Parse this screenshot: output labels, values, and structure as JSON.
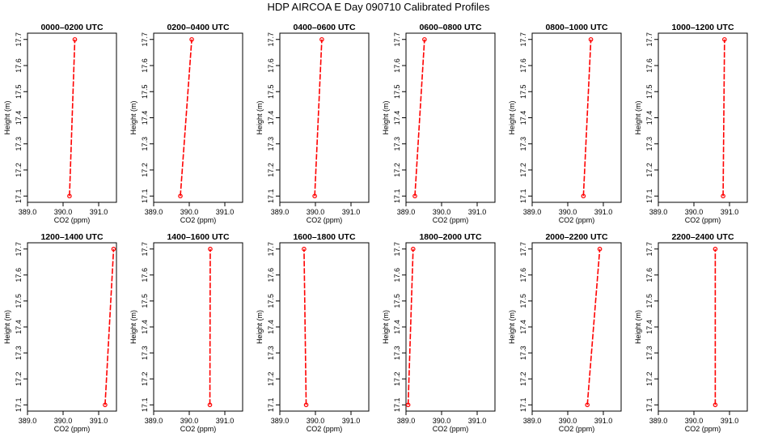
{
  "page": {
    "title": "HDP AIRCOA E  Day 090710  Calibrated Profiles"
  },
  "colors": {
    "series": "#ff0000",
    "axis": "#000000"
  },
  "chart_data": [
    {
      "type": "line",
      "title": "0000–0200 UTC",
      "xlabel": "CO2 (ppm)",
      "ylabel": "Height (m)",
      "xlim": [
        389.0,
        391.5
      ],
      "ylim": [
        17.1,
        17.7
      ],
      "xticks": [
        "389.0",
        "390.0",
        "391.0"
      ],
      "yticks": [
        "17.1",
        "17.2",
        "17.3",
        "17.4",
        "17.5",
        "17.6",
        "17.7"
      ],
      "x": [
        390.18,
        390.33
      ],
      "y": [
        17.1,
        17.7
      ]
    },
    {
      "type": "line",
      "title": "0200–0400 UTC",
      "xlabel": "CO2 (ppm)",
      "ylabel": "Height (m)",
      "xlim": [
        389.0,
        391.5
      ],
      "ylim": [
        17.1,
        17.7
      ],
      "xticks": [
        "389.0",
        "390.0",
        "391.0"
      ],
      "yticks": [
        "17.1",
        "17.2",
        "17.3",
        "17.4",
        "17.5",
        "17.6",
        "17.7"
      ],
      "x": [
        389.75,
        390.07
      ],
      "y": [
        17.1,
        17.7
      ]
    },
    {
      "type": "line",
      "title": "0400–0600 UTC",
      "xlabel": "CO2 (ppm)",
      "ylabel": "Height (m)",
      "xlim": [
        389.0,
        391.5
      ],
      "ylim": [
        17.1,
        17.7
      ],
      "xticks": [
        "389.0",
        "390.0",
        "391.0"
      ],
      "yticks": [
        "17.1",
        "17.2",
        "17.3",
        "17.4",
        "17.5",
        "17.6",
        "17.7"
      ],
      "x": [
        389.98,
        390.18
      ],
      "y": [
        17.1,
        17.7
      ]
    },
    {
      "type": "line",
      "title": "0600–0800 UTC",
      "xlabel": "CO2 (ppm)",
      "ylabel": "Height (m)",
      "xlim": [
        389.0,
        391.5
      ],
      "ylim": [
        17.1,
        17.7
      ],
      "xticks": [
        "389.0",
        "390.0",
        "391.0"
      ],
      "yticks": [
        "17.1",
        "17.2",
        "17.3",
        "17.4",
        "17.5",
        "17.6",
        "17.7"
      ],
      "x": [
        389.25,
        389.52
      ],
      "y": [
        17.1,
        17.7
      ]
    },
    {
      "type": "line",
      "title": "0800–1000 UTC",
      "xlabel": "CO2 (ppm)",
      "ylabel": "Height (m)",
      "xlim": [
        389.0,
        391.5
      ],
      "ylim": [
        17.1,
        17.7
      ],
      "xticks": [
        "389.0",
        "390.0",
        "391.0"
      ],
      "yticks": [
        "17.1",
        "17.2",
        "17.3",
        "17.4",
        "17.5",
        "17.6",
        "17.7"
      ],
      "x": [
        390.44,
        390.65
      ],
      "y": [
        17.1,
        17.7
      ]
    },
    {
      "type": "line",
      "title": "1000–1200 UTC",
      "xlabel": "CO2 (ppm)",
      "ylabel": "Height (m)",
      "xlim": [
        389.0,
        391.5
      ],
      "ylim": [
        17.1,
        17.7
      ],
      "xticks": [
        "389.0",
        "390.0",
        "391.0"
      ],
      "yticks": [
        "17.1",
        "17.2",
        "17.3",
        "17.4",
        "17.5",
        "17.6",
        "17.7"
      ],
      "x": [
        390.82,
        390.86
      ],
      "y": [
        17.1,
        17.7
      ]
    },
    {
      "type": "line",
      "title": "1200–1400 UTC",
      "xlabel": "CO2 (ppm)",
      "ylabel": "Height (m)",
      "xlim": [
        389.0,
        391.5
      ],
      "ylim": [
        17.1,
        17.7
      ],
      "xticks": [
        "389.0",
        "390.0",
        "391.0"
      ],
      "yticks": [
        "17.1",
        "17.2",
        "17.3",
        "17.4",
        "17.5",
        "17.6",
        "17.7"
      ],
      "x": [
        391.18,
        391.42
      ],
      "y": [
        17.1,
        17.7
      ]
    },
    {
      "type": "line",
      "title": "1400–1600 UTC",
      "xlabel": "CO2 (ppm)",
      "ylabel": "Height (m)",
      "xlim": [
        389.0,
        391.5
      ],
      "ylim": [
        17.1,
        17.7
      ],
      "xticks": [
        "389.0",
        "390.0",
        "391.0"
      ],
      "yticks": [
        "17.1",
        "17.2",
        "17.3",
        "17.4",
        "17.5",
        "17.6",
        "17.7"
      ],
      "x": [
        390.58,
        390.59
      ],
      "y": [
        17.1,
        17.7
      ]
    },
    {
      "type": "line",
      "title": "1600–1800 UTC",
      "xlabel": "CO2 (ppm)",
      "ylabel": "Height (m)",
      "xlim": [
        389.0,
        391.5
      ],
      "ylim": [
        17.1,
        17.7
      ],
      "xticks": [
        "389.0",
        "390.0",
        "391.0"
      ],
      "yticks": [
        "17.1",
        "17.2",
        "17.3",
        "17.4",
        "17.5",
        "17.6",
        "17.7"
      ],
      "x": [
        389.74,
        389.68
      ],
      "y": [
        17.1,
        17.7
      ]
    },
    {
      "type": "line",
      "title": "1800–2000 UTC",
      "xlabel": "CO2 (ppm)",
      "ylabel": "Height (m)",
      "xlim": [
        389.0,
        391.5
      ],
      "ylim": [
        17.1,
        17.7
      ],
      "xticks": [
        "389.0",
        "390.0",
        "391.0"
      ],
      "yticks": [
        "17.1",
        "17.2",
        "17.3",
        "17.4",
        "17.5",
        "17.6",
        "17.7"
      ],
      "x": [
        389.06,
        389.2
      ],
      "y": [
        17.1,
        17.7
      ]
    },
    {
      "type": "line",
      "title": "2000–2200 UTC",
      "xlabel": "CO2 (ppm)",
      "ylabel": "Height (m)",
      "xlim": [
        389.0,
        391.5
      ],
      "ylim": [
        17.1,
        17.7
      ],
      "xticks": [
        "389.0",
        "390.0",
        "391.0"
      ],
      "yticks": [
        "17.1",
        "17.2",
        "17.3",
        "17.4",
        "17.5",
        "17.6",
        "17.7"
      ],
      "x": [
        390.55,
        390.9
      ],
      "y": [
        17.1,
        17.7
      ]
    },
    {
      "type": "line",
      "title": "2200–2400 UTC",
      "xlabel": "CO2 (ppm)",
      "ylabel": "Height (m)",
      "xlim": [
        389.0,
        391.5
      ],
      "ylim": [
        17.1,
        17.7
      ],
      "xticks": [
        "389.0",
        "390.0",
        "391.0"
      ],
      "yticks": [
        "17.1",
        "17.2",
        "17.3",
        "17.4",
        "17.5",
        "17.6",
        "17.7"
      ],
      "x": [
        390.6,
        390.6
      ],
      "y": [
        17.1,
        17.7
      ]
    }
  ]
}
